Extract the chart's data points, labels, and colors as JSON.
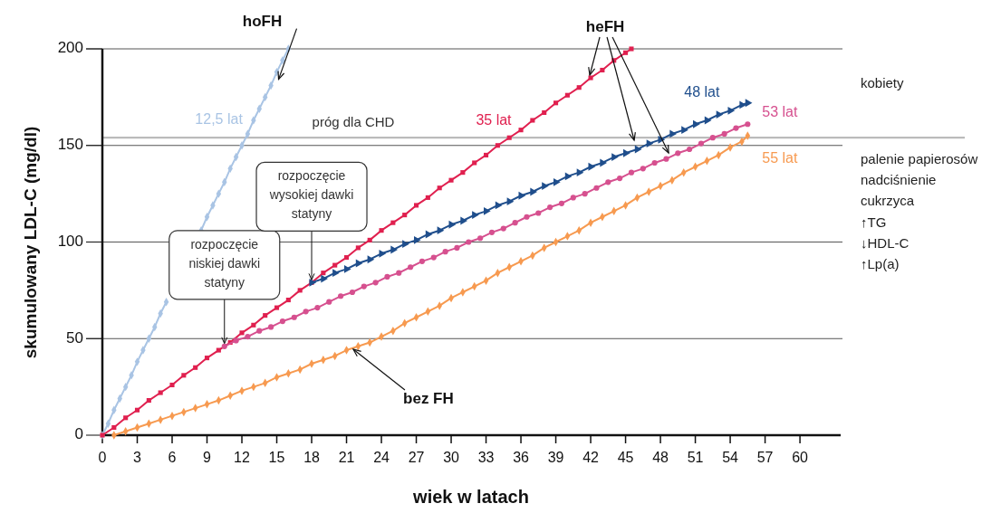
{
  "chart_data": {
    "type": "line",
    "xlabel": "wiek w latach",
    "ylabel": "skumulowany LDL-C (mg/dl)",
    "xlim": [
      0,
      63.5
    ],
    "ylim": [
      0,
      200
    ],
    "xticks": [
      0,
      3,
      6,
      9,
      12,
      15,
      18,
      21,
      24,
      27,
      30,
      33,
      36,
      39,
      42,
      45,
      48,
      51,
      54,
      57,
      60
    ],
    "yticks": [
      0,
      50,
      100,
      150,
      200
    ],
    "grid": "y",
    "series": [
      {
        "name": "12,5 lat",
        "color": "#a9c4e4",
        "marker": "diamond",
        "x": [
          0,
          0.5,
          1,
          1.5,
          2,
          2.5,
          3,
          3.5,
          4,
          4.5,
          5,
          5.5,
          6,
          6.5,
          7,
          7.5,
          8,
          8.5,
          9,
          9.5,
          10,
          10.5,
          11,
          11.5,
          12,
          12.5,
          13,
          13.5,
          14,
          14.5,
          15,
          15.5,
          16
        ],
        "values": [
          0,
          6,
          13,
          19,
          25,
          31,
          38,
          44,
          50,
          56,
          63,
          69,
          null,
          null,
          null,
          null,
          null,
          106,
          113,
          119,
          125,
          131,
          138,
          144,
          150,
          156,
          163,
          169,
          175,
          181,
          188,
          194,
          200
        ]
      },
      {
        "name": "35 lat",
        "color": "#e0204f",
        "marker": "square",
        "x": [
          0,
          1,
          2,
          3,
          4,
          5,
          6,
          7,
          8,
          9,
          10,
          11,
          12,
          13,
          14,
          15,
          16,
          17,
          18,
          19,
          20,
          21,
          22,
          23,
          24,
          25,
          26,
          27,
          28,
          29,
          30,
          31,
          32,
          33,
          34,
          35,
          36,
          37,
          38,
          39,
          40,
          41,
          42,
          43,
          44,
          45,
          45.5
        ],
        "values": [
          0,
          4,
          9,
          13,
          18,
          22,
          26,
          31,
          35,
          40,
          44,
          48,
          53,
          57,
          62,
          66,
          70,
          75,
          79,
          84,
          88,
          92,
          97,
          101,
          106,
          110,
          114,
          119,
          123,
          128,
          132,
          136,
          141,
          145,
          150,
          154,
          158,
          163,
          167,
          172,
          176,
          180,
          185,
          189,
          194,
          198,
          200
        ]
      },
      {
        "name": "48 lat",
        "color": "#1f4e8c",
        "marker": "triangle",
        "x": [
          18,
          19,
          20,
          21,
          22,
          23,
          24,
          25,
          26,
          27,
          28,
          29,
          30,
          31,
          32,
          33,
          34,
          35,
          36,
          37,
          38,
          39,
          40,
          41,
          42,
          43,
          44,
          45,
          46,
          47,
          48,
          49,
          50,
          51,
          52,
          53,
          54,
          55,
          55.5
        ],
        "values": [
          79,
          81,
          84,
          86,
          89,
          91,
          94,
          96,
          99,
          101,
          104,
          106,
          109,
          111,
          114,
          116,
          119,
          121,
          124,
          126,
          129,
          131,
          134,
          136,
          139,
          141,
          144,
          146,
          148,
          151,
          153,
          156,
          158,
          161,
          163,
          166,
          168,
          171,
          172
        ]
      },
      {
        "name": "53 lat",
        "color": "#d6508f",
        "marker": "circle",
        "x": [
          10.5,
          11.5,
          12.5,
          13.5,
          14.5,
          15.5,
          16.5,
          17.5,
          18.5,
          19.5,
          20.5,
          21.5,
          22.5,
          23.5,
          24.5,
          25.5,
          26.5,
          27.5,
          28.5,
          29.5,
          30.5,
          31.5,
          32.5,
          33.5,
          34.5,
          35.5,
          36.5,
          37.5,
          38.5,
          39.5,
          40.5,
          41.5,
          42.5,
          43.5,
          44.5,
          45.5,
          46.5,
          47.5,
          48.5,
          49.5,
          50.5,
          51.5,
          52.5,
          53.5,
          54.5,
          55.5
        ],
        "values": [
          46,
          49,
          51,
          54,
          56,
          59,
          61,
          64,
          66,
          69,
          72,
          74,
          77,
          79,
          82,
          84,
          87,
          90,
          92,
          95,
          97,
          100,
          102,
          105,
          107,
          110,
          113,
          115,
          118,
          120,
          123,
          125,
          128,
          131,
          133,
          136,
          138,
          141,
          143,
          146,
          148,
          151,
          154,
          156,
          159,
          161
        ]
      },
      {
        "name": "55 lat",
        "color": "#f79a50",
        "marker": "diamond",
        "x": [
          1,
          2,
          3,
          4,
          5,
          6,
          7,
          8,
          9,
          10,
          11,
          12,
          13,
          14,
          15,
          16,
          17,
          18,
          19,
          20,
          21,
          22,
          23,
          24,
          25,
          26,
          27,
          28,
          29,
          30,
          31,
          32,
          33,
          34,
          35,
          36,
          37,
          38,
          39,
          40,
          41,
          42,
          43,
          44,
          45,
          46,
          47,
          48,
          49,
          50,
          51,
          52,
          53,
          54,
          55,
          55.5
        ],
        "values": [
          0,
          2,
          4,
          6,
          8,
          10,
          12,
          14,
          16,
          18,
          20.5,
          23,
          25,
          27,
          30,
          32,
          34,
          37,
          39,
          41,
          44,
          46,
          48,
          51,
          54,
          58,
          61,
          64,
          67,
          71,
          74,
          77,
          80,
          84,
          87,
          90,
          93,
          97,
          100,
          103,
          106,
          110,
          113,
          116,
          119,
          123,
          126,
          129,
          132,
          136,
          139,
          142,
          145,
          149,
          152,
          155
        ]
      }
    ],
    "ref_lines": [
      {
        "axis": "y",
        "value": 154,
        "label": "próg dla CHD",
        "color": "#bbbbbb"
      }
    ],
    "annotations": [
      {
        "text": "hoFH",
        "x": 15,
        "y": 188
      },
      {
        "text": "heFH",
        "x": 42,
        "y": 185
      },
      {
        "text": "bez FH",
        "x": 21.5,
        "y": 45
      },
      {
        "text": "rozpoczęcie niskiej dawki statyny",
        "x": 10.5,
        "y": 46
      },
      {
        "text": "rozpoczęcie wysokiej dawki statyny",
        "x": 18,
        "y": 79
      },
      "kobiety",
      "palenie papierosów",
      "nadciśnienie",
      "cukrzyca",
      "↑TG",
      "↓HDL-C",
      "↑Lp(a)"
    ]
  }
}
